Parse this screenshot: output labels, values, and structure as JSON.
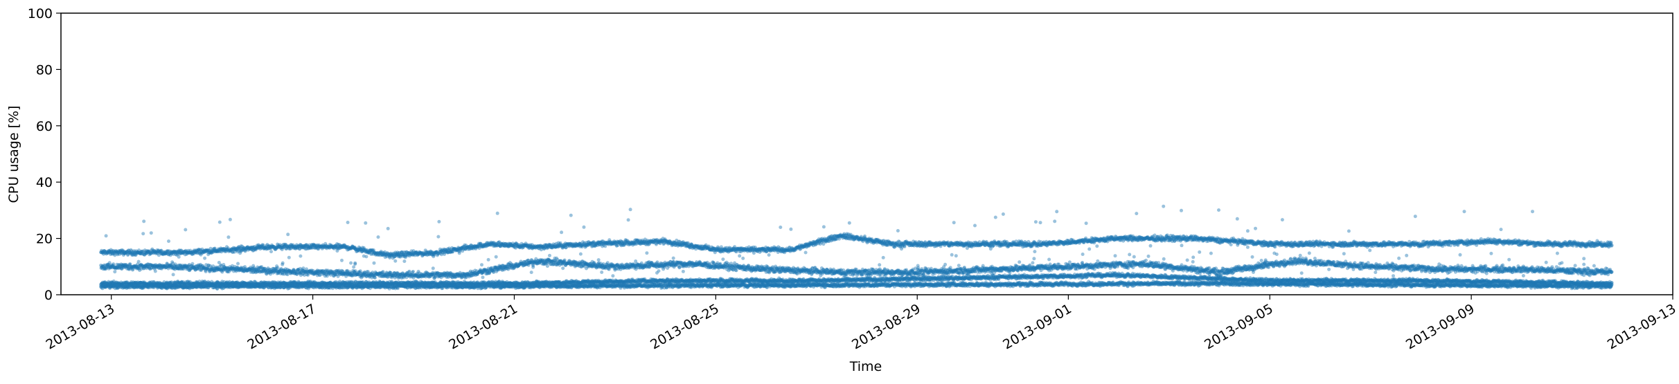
{
  "chart_data": {
    "type": "scatter",
    "title": "",
    "xlabel": "Time",
    "ylabel": "CPU usage [%]",
    "ylim": [
      0,
      100
    ],
    "xlim": [
      "2013-08-12",
      "2013-09-13"
    ],
    "grid": false,
    "legend": "none",
    "yticks": [
      "0",
      "20",
      "40",
      "60",
      "80",
      "100"
    ],
    "xticks": [
      "2013-08-13",
      "2013-08-17",
      "2013-08-21",
      "2013-08-25",
      "2013-08-29",
      "2013-09-01",
      "2013-09-05",
      "2013-09-09",
      "2013-09-13"
    ],
    "x_start": "2013-08-12 19:00",
    "x_end": "2013-09-11 19:00",
    "point_color": "#1f77b4",
    "point_alpha": 0.45,
    "series": [
      {
        "description": "upper band",
        "x": [
          "2013-08-12 19:00",
          "2013-08-14 12:00",
          "2013-08-16 04:00",
          "2013-08-17 16:00",
          "2013-08-18 12:00",
          "2013-08-19 12:00",
          "2013-08-20 12:00",
          "2013-08-21 12:00",
          "2013-08-22 12:00",
          "2013-08-24 00:00",
          "2013-08-25 00:00",
          "2013-08-26 12:00",
          "2013-08-27 12:00",
          "2013-08-28 12:00",
          "2013-08-30 00:00",
          "2013-08-31 12:00",
          "2013-09-02 00:00",
          "2013-09-03 12:00",
          "2013-09-05 00:00",
          "2013-09-06 12:00",
          "2013-09-08 00:00",
          "2013-09-09 12:00",
          "2013-09-10 12:00",
          "2013-09-11 19:00"
        ],
        "y": [
          15,
          15,
          17,
          17,
          14,
          15,
          18,
          17,
          18,
          19,
          16,
          16,
          21,
          18,
          18,
          18,
          20,
          20,
          18,
          18,
          18,
          19,
          18,
          18
        ]
      },
      {
        "description": "middle band",
        "x": [
          "2013-08-12 19:00",
          "2013-08-14 00:00",
          "2013-08-15 12:00",
          "2013-08-17 00:00",
          "2013-08-18 12:00",
          "2013-08-20 00:00",
          "2013-08-21 12:00",
          "2013-08-23 00:00",
          "2013-08-24 12:00",
          "2013-08-26 00:00",
          "2013-08-27 12:00",
          "2013-08-29 00:00",
          "2013-08-30 12:00",
          "2013-09-01 00:00",
          "2013-09-02 12:00",
          "2013-09-04 00:00",
          "2013-09-05 12:00",
          "2013-09-07 00:00",
          "2013-09-08 12:00",
          "2013-09-10 00:00",
          "2013-09-11 19:00"
        ],
        "y": [
          10,
          10,
          9,
          8,
          7,
          7,
          12,
          10,
          11,
          9,
          8,
          8,
          9,
          10,
          11,
          8,
          12,
          10,
          9,
          9,
          8
        ]
      },
      {
        "description": "lower band",
        "x": [
          "2013-08-12 19:00",
          "2013-08-15 00:00",
          "2013-08-18 00:00",
          "2013-08-21 00:00",
          "2013-08-24 00:00",
          "2013-08-27 00:00",
          "2013-08-30 00:00",
          "2013-09-02 00:00",
          "2013-09-05 00:00",
          "2013-09-08 00:00",
          "2013-09-11 19:00"
        ],
        "y": [
          4,
          4,
          4,
          4,
          5,
          5,
          6,
          7,
          5,
          5,
          4
        ]
      },
      {
        "description": "bottom band",
        "x": [
          "2013-08-12 19:00",
          "2013-08-20 00:00",
          "2013-08-28 00:00",
          "2013-09-04 00:00",
          "2013-09-11 19:00"
        ],
        "y": [
          3,
          3,
          3.5,
          4,
          3
        ]
      }
    ]
  }
}
